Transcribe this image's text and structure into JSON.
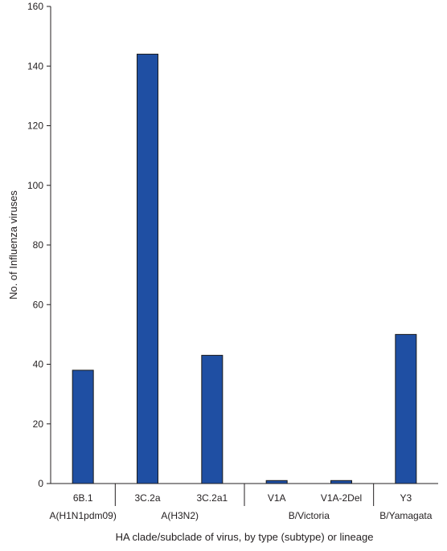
{
  "chart_data": {
    "type": "bar",
    "title": "",
    "xlabel": "HA clade/subclade of virus, by type (subtype) or lineage",
    "ylabel": "No. of Influenza viruses",
    "ylim": [
      0,
      160
    ],
    "yticks": [
      0,
      20,
      40,
      60,
      80,
      100,
      120,
      140,
      160
    ],
    "grid": false,
    "categories": [
      "6B.1",
      "3C.2a",
      "3C.2a1",
      "V1A",
      "V1A-2Del",
      "Y3"
    ],
    "values": [
      38,
      144,
      43,
      1,
      1,
      50
    ],
    "groups": [
      {
        "label": "A(H1N1pdm09)",
        "categories": [
          "6B.1"
        ]
      },
      {
        "label": "A(H3N2)",
        "categories": [
          "3C.2a",
          "3C.2a1"
        ]
      },
      {
        "label": "B/Victoria",
        "categories": [
          "V1A",
          "V1A-2Del"
        ]
      },
      {
        "label": "B/Yamagata",
        "categories": [
          "Y3"
        ]
      }
    ],
    "colors": {
      "bar": "#1f4fa3",
      "bar_stroke": "#1a1a1a",
      "axis": "#231f20"
    }
  }
}
